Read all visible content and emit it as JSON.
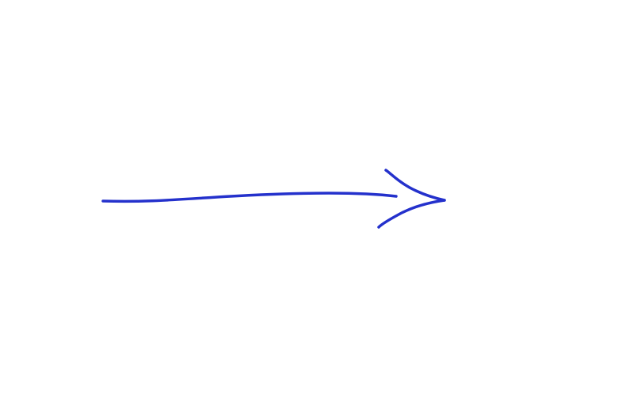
{
  "drawing": {
    "icon": "arrow-right-icon",
    "stroke_color": "#2431cc",
    "background": "#ffffff"
  }
}
